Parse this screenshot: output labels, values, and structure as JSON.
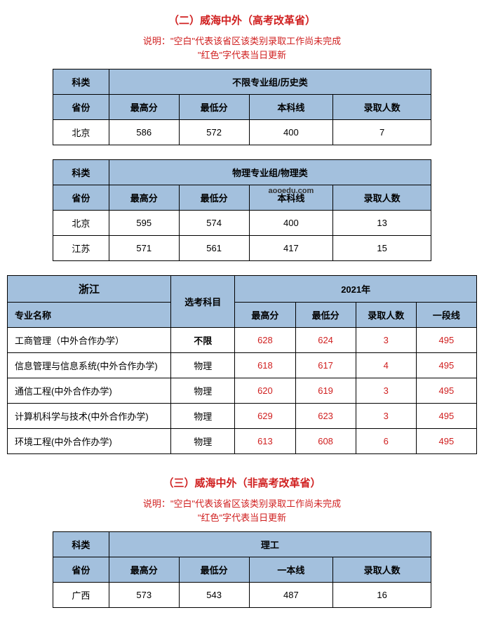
{
  "section2": {
    "title": "（二）威海中外（高考改革省）",
    "note_line1_prefix": "说明：",
    "note_line1_rest": "\"空白\"代表该省区该类别录取工作尚未完成",
    "note_line2": "\"红色\"字代表当日更新",
    "table1": {
      "h_kelei": "科类",
      "h_group": "不限专业组/历史类",
      "h_province": "省份",
      "h_max": "最高分",
      "h_min": "最低分",
      "h_line": "本科线",
      "h_count": "录取人数",
      "rows": [
        {
          "province": "北京",
          "max": "586",
          "min": "572",
          "line": "400",
          "count": "7"
        }
      ]
    },
    "table2": {
      "h_kelei": "科类",
      "h_group": "物理专业组/物理类",
      "h_province": "省份",
      "h_max": "最高分",
      "h_min": "最低分",
      "h_line": "本科线",
      "h_count": "录取人数",
      "watermark": "aooedu.com",
      "rows": [
        {
          "province": "北京",
          "max": "595",
          "min": "574",
          "line": "400",
          "count": "13"
        },
        {
          "province": "江苏",
          "max": "571",
          "min": "561",
          "line": "417",
          "count": "15"
        }
      ]
    },
    "table3": {
      "h_prov": "浙江",
      "h_subj": "选考科目",
      "h_year": "2021年",
      "h_major": "专业名称",
      "h_max": "最高分",
      "h_min": "最低分",
      "h_count": "录取人数",
      "h_line": "一段线",
      "rows": [
        {
          "major": "工商管理（中外合作办学）",
          "subj": "不限",
          "subj_bold": true,
          "max": "628",
          "min": "624",
          "count": "3",
          "line": "495"
        },
        {
          "major": "信息管理与信息系统(中外合作办学)",
          "subj": "物理",
          "subj_bold": false,
          "max": "618",
          "min": "617",
          "count": "4",
          "line": "495"
        },
        {
          "major": "通信工程(中外合作办学)",
          "subj": "物理",
          "subj_bold": false,
          "max": "620",
          "min": "619",
          "count": "3",
          "line": "495"
        },
        {
          "major": "计算机科学与技术(中外合作办学)",
          "subj": "物理",
          "subj_bold": false,
          "max": "629",
          "min": "623",
          "count": "3",
          "line": "495"
        },
        {
          "major": "环境工程(中外合作办学)",
          "subj": "物理",
          "subj_bold": false,
          "max": "613",
          "min": "608",
          "count": "6",
          "line": "495"
        }
      ]
    }
  },
  "section3": {
    "title": "（三）威海中外（非高考改革省）",
    "note_line1_prefix": "说明：",
    "note_line1_rest": "\"空白\"代表该省区该类别录取工作尚未完成",
    "note_line2": "\"红色\"字代表当日更新",
    "table1": {
      "h_kelei": "科类",
      "h_group": "理工",
      "h_province": "省份",
      "h_max": "最高分",
      "h_min": "最低分",
      "h_line": "一本线",
      "h_count": "录取人数",
      "rows": [
        {
          "province": "广西",
          "max": "573",
          "min": "543",
          "line": "487",
          "count": "16"
        }
      ]
    }
  },
  "colors": {
    "header_bg": "#a3c0dd",
    "red": "#d02020",
    "border": "#000000",
    "bg": "#ffffff"
  }
}
